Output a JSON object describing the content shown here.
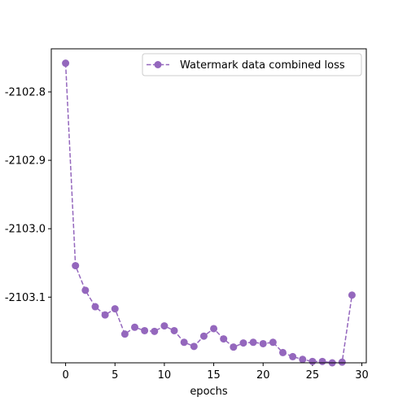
{
  "chart_data": {
    "type": "line",
    "title": "",
    "xlabel": "epochs",
    "ylabel": "",
    "xlim": [
      -1.45,
      30.45
    ],
    "ylim": [
      -2103.196,
      -2102.737
    ],
    "x_ticks": [
      0,
      5,
      10,
      15,
      20,
      25,
      30
    ],
    "x_tick_labels": [
      "0",
      "5",
      "10",
      "15",
      "20",
      "25",
      "30"
    ],
    "y_ticks": [
      -2102.8,
      -2102.9,
      -2103.0,
      -2103.1
    ],
    "y_tick_labels": [
      "-2102.8",
      "-2102.9",
      "-2103.0",
      "-2103.1"
    ],
    "grid": false,
    "legend_position": "top-right",
    "series": [
      {
        "name": "Watermark data combined loss",
        "color": "#9467bd",
        "line_style": "dashed",
        "marker": "circle",
        "x": [
          0,
          1,
          2,
          3,
          4,
          5,
          6,
          7,
          8,
          9,
          10,
          11,
          12,
          13,
          14,
          15,
          16,
          17,
          18,
          19,
          20,
          21,
          22,
          23,
          24,
          25,
          26,
          27,
          28,
          29
        ],
        "y": [
          -2102.758,
          -2103.054,
          -2103.09,
          -2103.114,
          -2103.126,
          -2103.117,
          -2103.154,
          -2103.144,
          -2103.149,
          -2103.15,
          -2103.142,
          -2103.149,
          -2103.166,
          -2103.172,
          -2103.157,
          -2103.146,
          -2103.161,
          -2103.173,
          -2103.167,
          -2103.166,
          -2103.168,
          -2103.166,
          -2103.181,
          -2103.187,
          -2103.191,
          -2103.194,
          -2103.194,
          -2103.196,
          -2103.195,
          -2103.097
        ]
      }
    ]
  }
}
